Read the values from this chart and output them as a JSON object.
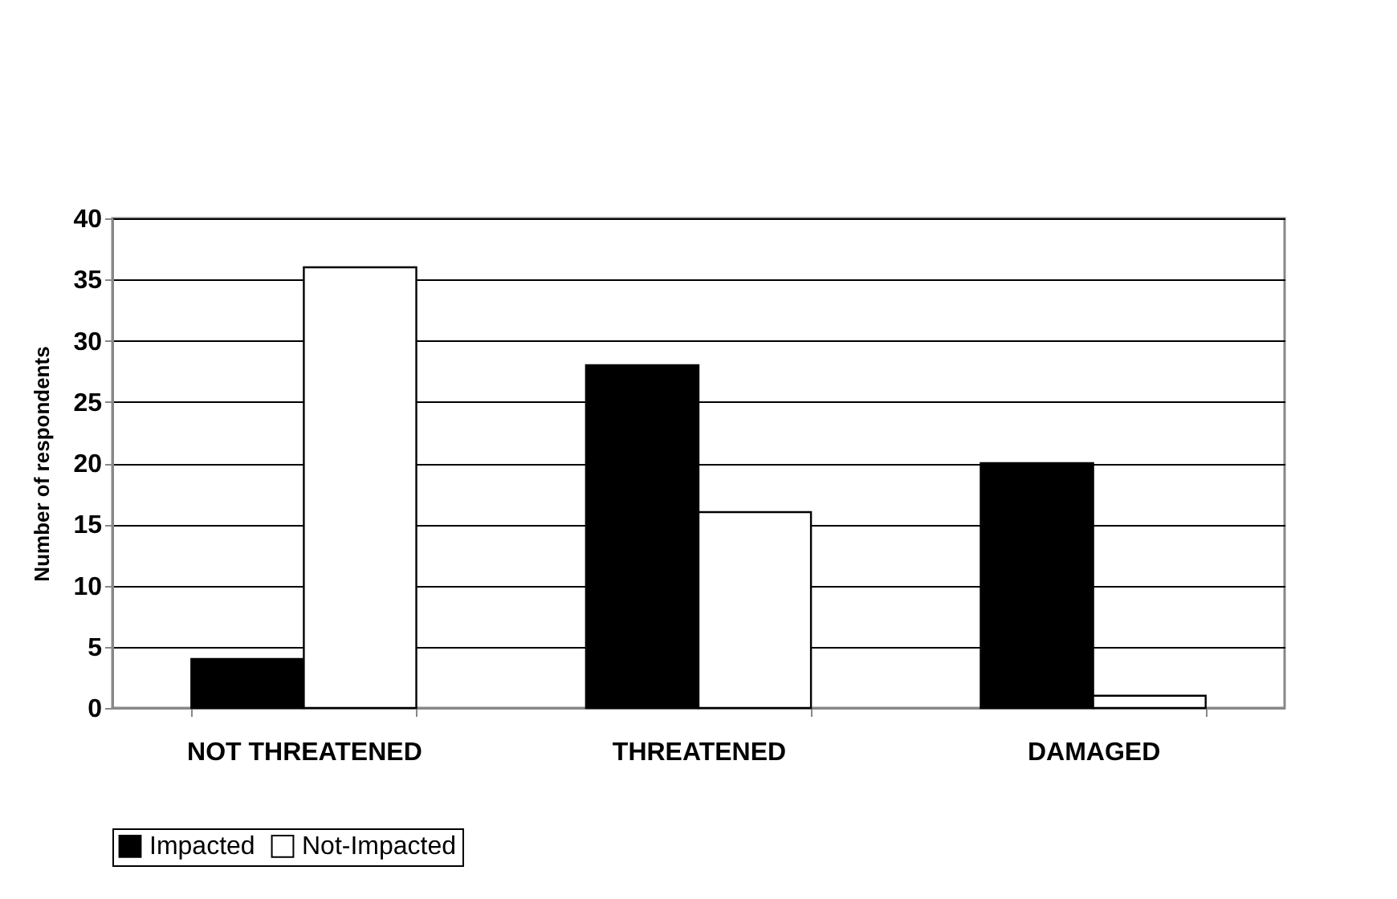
{
  "chart_data": {
    "type": "bar",
    "categories": [
      "NOT THREATENED",
      "THREATENED",
      "DAMAGED"
    ],
    "series": [
      {
        "name": "Impacted",
        "color": "#000000",
        "values": [
          4,
          28,
          20
        ]
      },
      {
        "name": "Not-Impacted",
        "color": "#ffffff",
        "values": [
          36,
          16,
          1
        ]
      }
    ],
    "ylabel": "Number of respondents",
    "ylim": [
      0,
      40
    ],
    "yticks": [
      0,
      5,
      10,
      15,
      20,
      25,
      30,
      35,
      40
    ],
    "grid": "y",
    "legend": "bottom"
  }
}
